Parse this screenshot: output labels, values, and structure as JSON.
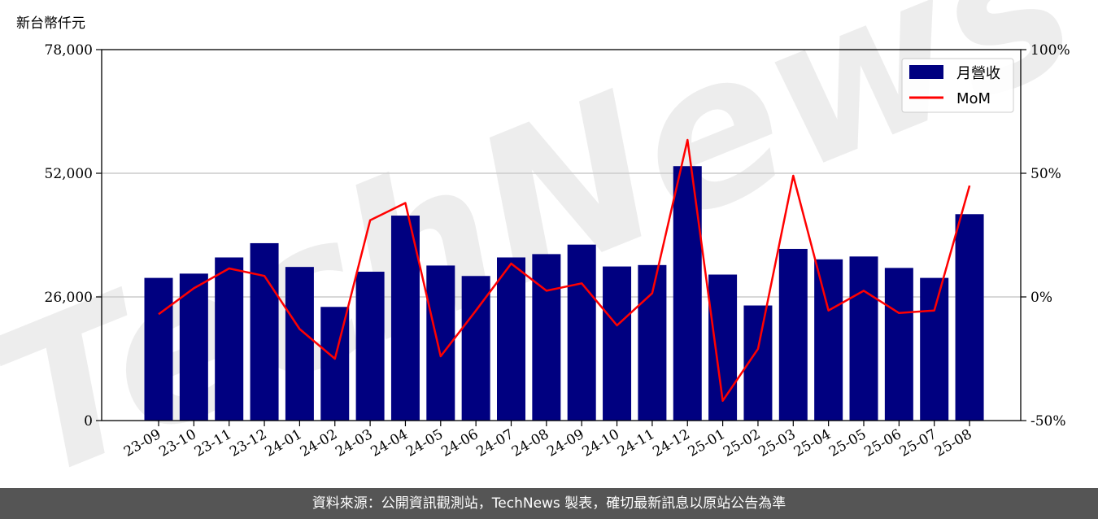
{
  "chart_data": {
    "type": "bar",
    "y_unit_label": "新台幣仟元",
    "categories": [
      "23-09",
      "23-10",
      "23-11",
      "23-12",
      "24-01",
      "24-02",
      "24-03",
      "24-04",
      "24-05",
      "24-06",
      "24-07",
      "24-08",
      "24-09",
      "24-10",
      "24-11",
      "24-12",
      "25-01",
      "25-02",
      "25-03",
      "25-04",
      "25-05",
      "25-06",
      "25-07",
      "25-08"
    ],
    "series": [
      {
        "name": "月營收",
        "type": "bar",
        "axis": "left",
        "color": "#000080",
        "values": [
          30000,
          30900,
          34300,
          37300,
          32300,
          23900,
          31300,
          43100,
          32600,
          30400,
          34300,
          35000,
          37000,
          32400,
          32700,
          53500,
          30700,
          24200,
          36100,
          33900,
          34500,
          32100,
          30000,
          43400
        ]
      },
      {
        "name": "MoM",
        "type": "line",
        "axis": "right",
        "color": "#ff0000",
        "values": [
          -7,
          3.5,
          11.5,
          8.5,
          -13,
          -25,
          31,
          38,
          -24,
          -5.5,
          13.5,
          2.5,
          5.5,
          -11.5,
          1.5,
          63.5,
          -42,
          -21,
          49,
          -5.5,
          2.5,
          -6.5,
          -5.5,
          45
        ]
      }
    ],
    "y_left": {
      "min": 0,
      "max": 78000,
      "ticks": [
        0,
        26000,
        52000,
        78000
      ],
      "tick_labels": [
        "0",
        "26,000",
        "52,000",
        "78,000"
      ]
    },
    "y_right": {
      "min": -50,
      "max": 100,
      "ticks": [
        -50,
        0,
        50,
        100
      ],
      "tick_labels": [
        "-50%",
        "0%",
        "50%",
        "100%"
      ]
    },
    "grid": "horizontal",
    "legend": "top-right",
    "watermark": "TechNews"
  },
  "footer": {
    "text": "資料來源：公開資訊觀測站，TechNews 製表，確切最新訊息以原站公告為準"
  }
}
